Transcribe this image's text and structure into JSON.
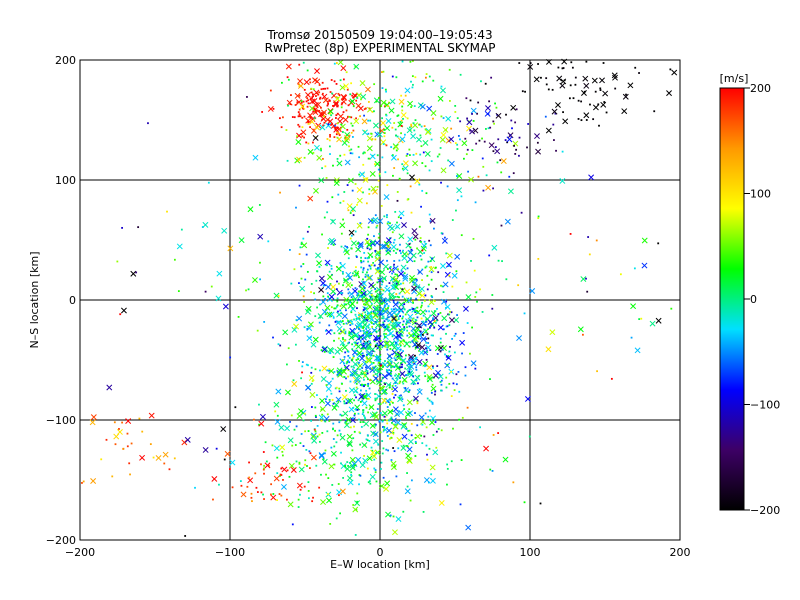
{
  "chart_data": {
    "type": "scatter",
    "title": "Tromsø 20150509 19:04:00–19:05:43",
    "subtitle": "RwPretec (8p) EXPERIMENTAL SKYMAP",
    "xlabel": "E–W location [km]",
    "ylabel": "N–S location [km]",
    "xlim": [
      -200,
      200
    ],
    "ylim": [
      -200,
      200
    ],
    "xticks": [
      -200,
      -100,
      0,
      100,
      200
    ],
    "yticks": [
      -200,
      -100,
      0,
      100,
      200
    ],
    "grid": true,
    "markers": [
      "dot",
      "x"
    ],
    "colorbar": {
      "label": "[m/s]",
      "range": [
        -200,
        200
      ],
      "ticks": [
        200,
        100,
        0,
        -100,
        -200
      ],
      "colormap": [
        "#000000",
        "#3d0066",
        "#0000ff",
        "#00e0ff",
        "#00ff00",
        "#ffff00",
        "#ff9900",
        "#ff0000"
      ]
    },
    "clusters": [
      {
        "cx": 0,
        "cy": -25,
        "sx": 22,
        "sy": 45,
        "n": 1400,
        "v": -10,
        "vs": 45
      },
      {
        "cx": -15,
        "cy": -120,
        "sx": 35,
        "sy": 30,
        "n": 300,
        "v": 10,
        "vs": 40
      },
      {
        "cx": -40,
        "cy": 160,
        "sx": 15,
        "sy": 13,
        "n": 180,
        "v": 195,
        "vs": 10
      },
      {
        "cx": -10,
        "cy": 145,
        "sx": 28,
        "sy": 28,
        "n": 220,
        "v": 60,
        "vs": 50
      },
      {
        "cx": 30,
        "cy": 140,
        "sx": 25,
        "sy": 25,
        "n": 120,
        "v": 10,
        "vs": 40
      },
      {
        "cx": 80,
        "cy": 140,
        "sx": 15,
        "sy": 15,
        "n": 60,
        "v": -130,
        "vs": 30
      },
      {
        "cx": 135,
        "cy": 178,
        "sx": 25,
        "sy": 18,
        "n": 80,
        "v": -200,
        "vs": 5
      },
      {
        "cx": -75,
        "cy": -150,
        "sx": 20,
        "sy": 15,
        "n": 50,
        "v": 185,
        "vs": 15
      },
      {
        "cx": -175,
        "cy": -115,
        "sx": 18,
        "sy": 20,
        "n": 35,
        "v": 145,
        "vs": 30
      },
      {
        "cx": 30,
        "cy": -20,
        "sx": 15,
        "sy": 30,
        "n": 90,
        "v": -90,
        "vs": 40
      },
      {
        "cx": 0,
        "cy": 40,
        "sx": 60,
        "sy": 40,
        "n": 150,
        "v": 0,
        "vs": 60
      },
      {
        "cx": 0,
        "cy": 0,
        "sx": 110,
        "sy": 110,
        "n": 160,
        "v": 0,
        "vs": 120
      }
    ]
  }
}
